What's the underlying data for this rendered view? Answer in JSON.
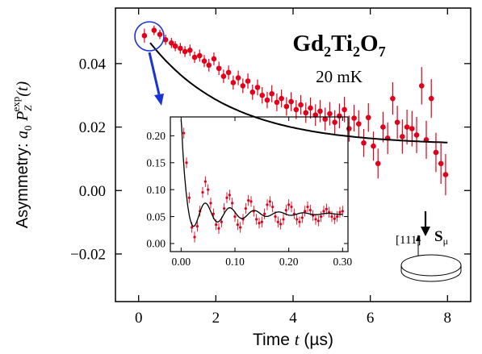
{
  "chart_data": [
    {
      "type": "scatter",
      "title": "Gd2Ti2O7",
      "title_parts": {
        "el1": "Gd",
        "n1": "2",
        "el2": "Ti",
        "n2": "2",
        "el3": "O",
        "n3": "7"
      },
      "subtitle": "20 mK",
      "xlabel": "Time t (µs)",
      "xlabel_parts": {
        "pre": "Time ",
        "var": "t",
        "post": " (µs)"
      },
      "ylabel": "Asymmetry: a0 P_Z^exp(t)",
      "ylabel_parts": {
        "pre": "Asymmetry: ",
        "a": "a",
        "a_sub": "0",
        "P": "P",
        "P_sub": "Z",
        "P_sup": "exp",
        "arg": "(t)"
      },
      "xlim": [
        -0.6,
        8.6
      ],
      "ylim": [
        -0.035,
        0.0575
      ],
      "xticks": [
        0,
        2,
        4,
        6,
        8
      ],
      "xtick_labels": [
        "0",
        "2",
        "4",
        "6",
        "8"
      ],
      "yticks": [
        -0.02,
        0.0,
        0.02,
        0.04
      ],
      "ytick_labels": [
        "−0.02",
        "0.00",
        "0.02",
        "0.04"
      ],
      "grid": false,
      "marker_color": "#e0001a",
      "fit_color": "#000000",
      "highlight_color": "#1a33d9",
      "series": [
        {
          "points": [
            {
              "x": 0.15,
              "y": 0.0488,
              "e": 0.0022
            },
            {
              "x": 0.4,
              "y": 0.0505,
              "e": 0.0015
            },
            {
              "x": 0.55,
              "y": 0.0492,
              "e": 0.0015
            },
            {
              "x": 0.7,
              "y": 0.0475,
              "e": 0.0016
            },
            {
              "x": 0.85,
              "y": 0.0465,
              "e": 0.0016
            },
            {
              "x": 0.95,
              "y": 0.0455,
              "e": 0.0016
            },
            {
              "x": 1.08,
              "y": 0.0448,
              "e": 0.0017
            },
            {
              "x": 1.2,
              "y": 0.0438,
              "e": 0.0017
            },
            {
              "x": 1.33,
              "y": 0.0442,
              "e": 0.0018
            },
            {
              "x": 1.45,
              "y": 0.042,
              "e": 0.0018
            },
            {
              "x": 1.58,
              "y": 0.0425,
              "e": 0.0019
            },
            {
              "x": 1.7,
              "y": 0.0408,
              "e": 0.0019
            },
            {
              "x": 1.82,
              "y": 0.0395,
              "e": 0.002
            },
            {
              "x": 1.95,
              "y": 0.0415,
              "e": 0.002
            },
            {
              "x": 2.08,
              "y": 0.0385,
              "e": 0.0021
            },
            {
              "x": 2.2,
              "y": 0.036,
              "e": 0.0021
            },
            {
              "x": 2.33,
              "y": 0.0372,
              "e": 0.0022
            },
            {
              "x": 2.45,
              "y": 0.034,
              "e": 0.0022
            },
            {
              "x": 2.58,
              "y": 0.0355,
              "e": 0.0023
            },
            {
              "x": 2.7,
              "y": 0.033,
              "e": 0.0023
            },
            {
              "x": 2.83,
              "y": 0.0345,
              "e": 0.0024
            },
            {
              "x": 2.95,
              "y": 0.031,
              "e": 0.0024
            },
            {
              "x": 3.08,
              "y": 0.0325,
              "e": 0.0025
            },
            {
              "x": 3.2,
              "y": 0.03,
              "e": 0.0026
            },
            {
              "x": 3.33,
              "y": 0.0285,
              "e": 0.0026
            },
            {
              "x": 3.45,
              "y": 0.0305,
              "e": 0.0027
            },
            {
              "x": 3.58,
              "y": 0.0278,
              "e": 0.0028
            },
            {
              "x": 3.7,
              "y": 0.029,
              "e": 0.0028
            },
            {
              "x": 3.83,
              "y": 0.0265,
              "e": 0.0029
            },
            {
              "x": 3.95,
              "y": 0.028,
              "e": 0.003
            },
            {
              "x": 4.08,
              "y": 0.0255,
              "e": 0.003
            },
            {
              "x": 4.2,
              "y": 0.027,
              "e": 0.0031
            },
            {
              "x": 4.33,
              "y": 0.0245,
              "e": 0.0032
            },
            {
              "x": 4.45,
              "y": 0.026,
              "e": 0.0033
            },
            {
              "x": 4.58,
              "y": 0.0238,
              "e": 0.0034
            },
            {
              "x": 4.7,
              "y": 0.025,
              "e": 0.0035
            },
            {
              "x": 4.83,
              "y": 0.0225,
              "e": 0.0036
            },
            {
              "x": 4.95,
              "y": 0.0242,
              "e": 0.0037
            },
            {
              "x": 5.08,
              "y": 0.0215,
              "e": 0.0038
            },
            {
              "x": 5.2,
              "y": 0.0235,
              "e": 0.0039
            },
            {
              "x": 5.33,
              "y": 0.0255,
              "e": 0.004
            },
            {
              "x": 5.45,
              "y": 0.0195,
              "e": 0.0041
            },
            {
              "x": 5.58,
              "y": 0.0228,
              "e": 0.0042
            },
            {
              "x": 5.7,
              "y": 0.021,
              "e": 0.0043
            },
            {
              "x": 5.83,
              "y": 0.015,
              "e": 0.0044
            },
            {
              "x": 5.95,
              "y": 0.023,
              "e": 0.0045
            },
            {
              "x": 6.08,
              "y": 0.014,
              "e": 0.0046
            },
            {
              "x": 6.2,
              "y": 0.0085,
              "e": 0.0047
            },
            {
              "x": 6.33,
              "y": 0.02,
              "e": 0.0048
            },
            {
              "x": 6.45,
              "y": 0.0165,
              "e": 0.005
            },
            {
              "x": 6.58,
              "y": 0.029,
              "e": 0.0051
            },
            {
              "x": 6.7,
              "y": 0.0215,
              "e": 0.0052
            },
            {
              "x": 6.83,
              "y": 0.017,
              "e": 0.0054
            },
            {
              "x": 6.95,
              "y": 0.02,
              "e": 0.0055
            },
            {
              "x": 7.08,
              "y": 0.0195,
              "e": 0.0056
            },
            {
              "x": 7.2,
              "y": 0.0175,
              "e": 0.0057
            },
            {
              "x": 7.33,
              "y": 0.033,
              "e": 0.0059
            },
            {
              "x": 7.45,
              "y": 0.016,
              "e": 0.006
            },
            {
              "x": 7.58,
              "y": 0.029,
              "e": 0.0061
            },
            {
              "x": 7.7,
              "y": 0.012,
              "e": 0.0062
            },
            {
              "x": 7.83,
              "y": 0.0085,
              "e": 0.0064
            },
            {
              "x": 7.95,
              "y": 0.005,
              "e": 0.0065
            }
          ]
        }
      ],
      "fit": {
        "type": "curve",
        "form": "0.0143 + 0.0372*exp(-t/2.1)",
        "x_range": [
          0.3,
          8.0
        ]
      },
      "annotations": [
        "20 mK",
        "[111]",
        "Sμ"
      ],
      "annotation_parts": {
        "crystal_axis": "[111]",
        "spin_S": "S",
        "spin_mu": "μ"
      }
    },
    {
      "type": "scatter",
      "role": "inset",
      "xlim": [
        -0.02,
        0.31
      ],
      "ylim": [
        -0.015,
        0.235
      ],
      "xticks": [
        0.0,
        0.1,
        0.2,
        0.3
      ],
      "xtick_labels": [
        "0.00",
        "0.10",
        "0.20",
        "0.30"
      ],
      "yticks": [
        0.0,
        0.05,
        0.1,
        0.15,
        0.2
      ],
      "ytick_labels": [
        "0.00",
        "0.05",
        "0.10",
        "0.15",
        "0.20"
      ],
      "grid": false,
      "series": [
        {
          "points": [
            {
              "x": 0.005,
              "y": 0.205,
              "e": 0.01
            },
            {
              "x": 0.01,
              "y": 0.15,
              "e": 0.01
            },
            {
              "x": 0.015,
              "y": 0.085,
              "e": 0.01
            },
            {
              "x": 0.02,
              "y": 0.03,
              "e": 0.01
            },
            {
              "x": 0.025,
              "y": 0.012,
              "e": 0.01
            },
            {
              "x": 0.03,
              "y": 0.032,
              "e": 0.01
            },
            {
              "x": 0.035,
              "y": 0.06,
              "e": 0.01
            },
            {
              "x": 0.04,
              "y": 0.095,
              "e": 0.01
            },
            {
              "x": 0.045,
              "y": 0.115,
              "e": 0.01
            },
            {
              "x": 0.05,
              "y": 0.1,
              "e": 0.01
            },
            {
              "x": 0.055,
              "y": 0.075,
              "e": 0.01
            },
            {
              "x": 0.06,
              "y": 0.055,
              "e": 0.01
            },
            {
              "x": 0.065,
              "y": 0.035,
              "e": 0.01
            },
            {
              "x": 0.07,
              "y": 0.028,
              "e": 0.01
            },
            {
              "x": 0.075,
              "y": 0.04,
              "e": 0.01
            },
            {
              "x": 0.08,
              "y": 0.065,
              "e": 0.01
            },
            {
              "x": 0.085,
              "y": 0.085,
              "e": 0.01
            },
            {
              "x": 0.09,
              "y": 0.09,
              "e": 0.01
            },
            {
              "x": 0.095,
              "y": 0.075,
              "e": 0.01
            },
            {
              "x": 0.1,
              "y": 0.05,
              "e": 0.01
            },
            {
              "x": 0.105,
              "y": 0.035,
              "e": 0.01
            },
            {
              "x": 0.11,
              "y": 0.03,
              "e": 0.01
            },
            {
              "x": 0.115,
              "y": 0.045,
              "e": 0.01
            },
            {
              "x": 0.12,
              "y": 0.065,
              "e": 0.01
            },
            {
              "x": 0.125,
              "y": 0.08,
              "e": 0.01
            },
            {
              "x": 0.13,
              "y": 0.078,
              "e": 0.01
            },
            {
              "x": 0.135,
              "y": 0.06,
              "e": 0.01
            },
            {
              "x": 0.14,
              "y": 0.045,
              "e": 0.01
            },
            {
              "x": 0.145,
              "y": 0.038,
              "e": 0.01
            },
            {
              "x": 0.15,
              "y": 0.04,
              "e": 0.01
            },
            {
              "x": 0.155,
              "y": 0.055,
              "e": 0.01
            },
            {
              "x": 0.16,
              "y": 0.072,
              "e": 0.01
            },
            {
              "x": 0.165,
              "y": 0.078,
              "e": 0.01
            },
            {
              "x": 0.17,
              "y": 0.068,
              "e": 0.01
            },
            {
              "x": 0.175,
              "y": 0.05,
              "e": 0.01
            },
            {
              "x": 0.18,
              "y": 0.04,
              "e": 0.01
            },
            {
              "x": 0.185,
              "y": 0.036,
              "e": 0.01
            },
            {
              "x": 0.19,
              "y": 0.045,
              "e": 0.01
            },
            {
              "x": 0.195,
              "y": 0.062,
              "e": 0.01
            },
            {
              "x": 0.2,
              "y": 0.072,
              "e": 0.01
            },
            {
              "x": 0.205,
              "y": 0.068,
              "e": 0.01
            },
            {
              "x": 0.21,
              "y": 0.055,
              "e": 0.01
            },
            {
              "x": 0.215,
              "y": 0.045,
              "e": 0.01
            },
            {
              "x": 0.22,
              "y": 0.04,
              "e": 0.01
            },
            {
              "x": 0.225,
              "y": 0.048,
              "e": 0.01
            },
            {
              "x": 0.23,
              "y": 0.06,
              "e": 0.01
            },
            {
              "x": 0.235,
              "y": 0.068,
              "e": 0.01
            },
            {
              "x": 0.24,
              "y": 0.062,
              "e": 0.01
            },
            {
              "x": 0.245,
              "y": 0.052,
              "e": 0.01
            },
            {
              "x": 0.25,
              "y": 0.045,
              "e": 0.01
            },
            {
              "x": 0.255,
              "y": 0.042,
              "e": 0.01
            },
            {
              "x": 0.26,
              "y": 0.05,
              "e": 0.01
            },
            {
              "x": 0.265,
              "y": 0.06,
              "e": 0.01
            },
            {
              "x": 0.27,
              "y": 0.064,
              "e": 0.01
            },
            {
              "x": 0.275,
              "y": 0.058,
              "e": 0.01
            },
            {
              "x": 0.28,
              "y": 0.05,
              "e": 0.01
            },
            {
              "x": 0.285,
              "y": 0.046,
              "e": 0.01
            },
            {
              "x": 0.29,
              "y": 0.05,
              "e": 0.01
            },
            {
              "x": 0.295,
              "y": 0.058,
              "e": 0.01
            },
            {
              "x": 0.3,
              "y": 0.06,
              "e": 0.01
            }
          ]
        }
      ],
      "fit": {
        "type": "curve",
        "form": "0.055 + 0.15*exp(-t/0.006) + 0.035*exp(-t/0.08)*cos(2*pi*t/0.0455)",
        "x_range": [
          0.0,
          0.3
        ]
      }
    }
  ]
}
